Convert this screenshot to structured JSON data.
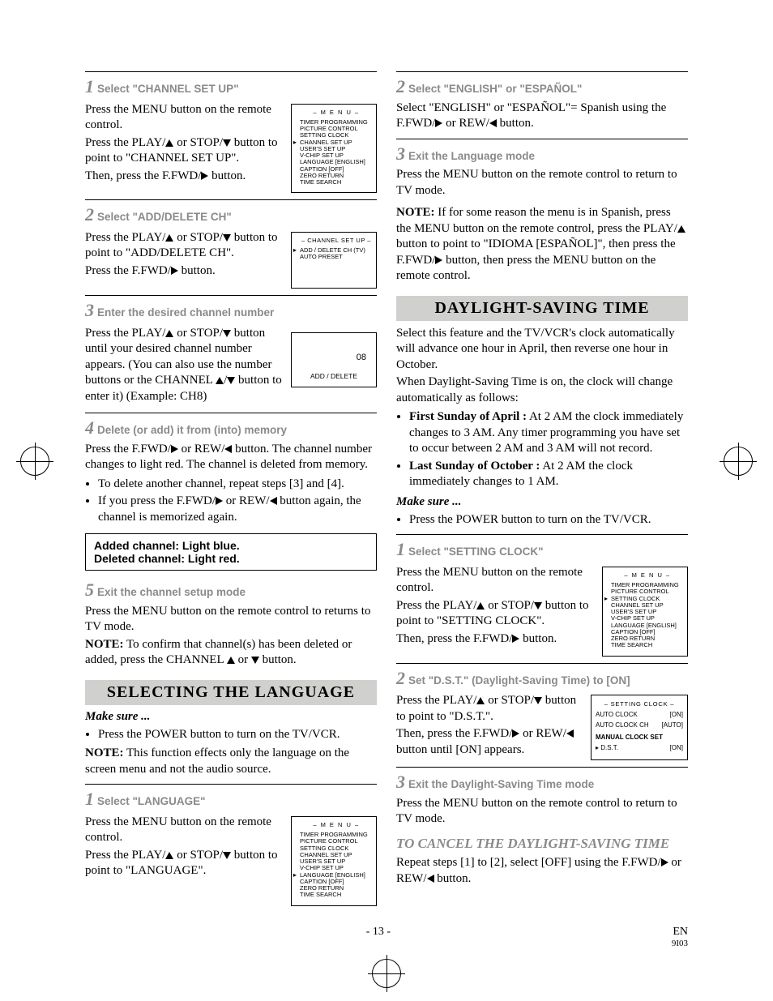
{
  "colors": {
    "grey_bg": "#d0d0cf",
    "grey_text": "#8a8a8a",
    "black": "#000000"
  },
  "left": {
    "step1": {
      "title": "Select \"CHANNEL SET UP\"",
      "p1": "Press the MENU button on the remote control.",
      "p2a": "Press the PLAY/",
      "p2b": " or STOP/",
      "p2c": " button to point to \"CHANNEL SET UP\".",
      "p3a": "Then, press the F.FWD/",
      "p3b": " button."
    },
    "osd1": {
      "title": "– M E N U –",
      "lines": [
        "TIMER PROGRAMMING",
        "PICTURE CONTROL",
        "SETTING CLOCK",
        "CHANNEL SET UP",
        "USER'S SET UP",
        "V-CHIP SET UP",
        "LANGUAGE  [ENGLISH]",
        "CAPTION  [OFF]",
        "ZERO RETURN",
        "TIME SEARCH"
      ],
      "pointer_index": 3
    },
    "step2": {
      "title": "Select \"ADD/DELETE CH\"",
      "p1a": "Press the PLAY/",
      "p1b": " or STOP/",
      "p1c": " button to point to \"ADD/DELETE CH\".",
      "p2a": "Press the F.FWD/",
      "p2b": " button."
    },
    "osd2": {
      "title": "– CHANNEL SET UP –",
      "lines": [
        "ADD / DELETE CH (TV)",
        "AUTO PRESET"
      ],
      "pointer_index": 0
    },
    "step3": {
      "title": "Enter the desired channel number",
      "p1a": "Press the PLAY/",
      "p1b": " or STOP/",
      "p1c": " button until your desired channel number appears. (You can also use the number buttons  or the CHANNEL ",
      "p1d": " button to enter it) (Example: CH8)"
    },
    "osd3": {
      "val": "08",
      "label": "ADD / DELETE"
    },
    "step4": {
      "title": "Delete (or add) it from (into) memory",
      "p1a": "Press the F.FWD/",
      "p1b": " or REW/",
      "p1c": " button. The channel number changes to light red. The channel is deleted from memory.",
      "b1": "To delete another channel, repeat steps [3] and [4].",
      "b2a": "If you press the F.FWD/",
      "b2b": " or REW/",
      "b2c": " button again, the channel is memorized again."
    },
    "box": {
      "l1": "Added channel: Light blue.",
      "l2": "Deleted channel: Light red."
    },
    "step5": {
      "title": "Exit the channel setup mode",
      "p1": "Press the MENU button on the remote control to returns to TV mode.",
      "note_label": "NOTE:",
      "note_a": " To confirm that channel(s) has been deleted or added, press the CHANNEL ",
      "note_b": " button."
    },
    "lang_section": {
      "heading": "SELECTING THE LANGUAGE",
      "makesure": "Make sure ...",
      "b1": "Press the POWER button to turn on the TV/VCR.",
      "note_label": "NOTE:",
      "note": " This function effects only the language on the screen menu and not the audio source."
    },
    "langstep1": {
      "title": "Select \"LANGUAGE\"",
      "p1": "Press the MENU button on the remote control.",
      "p2a": "Press the PLAY/",
      "p2b": " or STOP/",
      "p2c": " button to point to \"LANGUAGE\"."
    },
    "osd4": {
      "title": "– M E N U –",
      "lines": [
        "TIMER PROGRAMMING",
        "PICTURE CONTROL",
        "SETTING CLOCK",
        "CHANNEL SET UP",
        "USER'S SET UP",
        "V-CHIP SET UP",
        "LANGUAGE  [ENGLISH]",
        "CAPTION  [OFF]",
        "ZERO RETURN",
        "TIME SEARCH"
      ],
      "pointer_index": 6
    }
  },
  "right": {
    "step2": {
      "title": "Select \"ENGLISH\" or \"ESPAÑOL\"",
      "p1a": "Select \"ENGLISH\" or \"ESPAÑOL\"= Spanish using the F.FWD/",
      "p1b": " or REW/",
      "p1c": " button."
    },
    "step3": {
      "title": "Exit the Language mode",
      "p1": "Press the MENU button on the remote control to return to TV mode."
    },
    "note": {
      "label": "NOTE:",
      "t1": " If for some reason the menu is in Spanish, press the MENU button on the remote control, press the PLAY/",
      "t2": " button to point to \"IDIOMA [ESPAÑOL]\", then press the F.FWD/",
      "t3": " button, then press the MENU button on the remote control."
    },
    "dst_heading": "DAYLIGHT-SAVING TIME",
    "dst_intro1": "Select this feature and the TV/VCR's clock automatically will advance one hour in April, then reverse one hour in October.",
    "dst_intro2": "When Daylight-Saving Time is on, the clock will change automatically as follows:",
    "dst_b1_label": "First Sunday of April :",
    "dst_b1": " At 2 AM the clock immediately changes to 3 AM. Any timer programming you have set to occur between 2 AM and 3 AM will not record.",
    "dst_b2_label": "Last Sunday of October :",
    "dst_b2": " At 2 AM the clock immediately changes to 1 AM.",
    "makesure": "Make sure ...",
    "ms_b1": "Press the POWER button to turn on the TV/VCR.",
    "dststep1": {
      "title": "Select \"SETTING CLOCK\"",
      "p1": "Press the MENU button on the remote control.",
      "p2a": "Press the PLAY/",
      "p2b": " or STOP/",
      "p2c": " button to point to \"SETTING CLOCK\".",
      "p3a": "Then, press the F.FWD/",
      "p3b": " button."
    },
    "osd5": {
      "title": "– M E N U –",
      "lines": [
        "TIMER PROGRAMMING",
        "PICTURE CONTROL",
        "SETTING CLOCK",
        "CHANNEL SET UP",
        "USER'S SET UP",
        "V-CHIP SET UP",
        "LANGUAGE  [ENGLISH]",
        "CAPTION  [OFF]",
        "ZERO RETURN",
        "TIME SEARCH"
      ],
      "pointer_index": 2
    },
    "dststep2": {
      "title": "Set \"D.S.T.\" (Daylight-Saving Time) to [ON]",
      "p1a": "Press the PLAY/",
      "p1b": " or STOP/",
      "p1c": " button to point to \"D.S.T.\".",
      "p2a": "Then, press the F.FWD/",
      "p2b": " or REW/",
      "p2c": " button until [ON] appears."
    },
    "osd6": {
      "title": "– SETTING CLOCK –",
      "r1l": "AUTO CLOCK",
      "r1r": "[ON]",
      "r2l": "AUTO CLOCK CH",
      "r2r": "[AUTO]",
      "mid": "MANUAL CLOCK SET",
      "r3l": "D.S.T.",
      "r3r": "[ON]"
    },
    "dststep3": {
      "title": "Exit the Daylight-Saving Time mode",
      "p1": "Press the MENU button on the remote control to return to TV mode."
    },
    "cancel": {
      "heading": "TO CANCEL THE DAYLIGHT-SAVING TIME",
      "p1a": "Repeat steps [1] to [2], select [OFF] using the F.FWD/",
      "p1b": " or REW/",
      "p1c": " button."
    }
  },
  "footer": {
    "page": "- 13 -",
    "lang": "EN",
    "code": "9I03"
  }
}
